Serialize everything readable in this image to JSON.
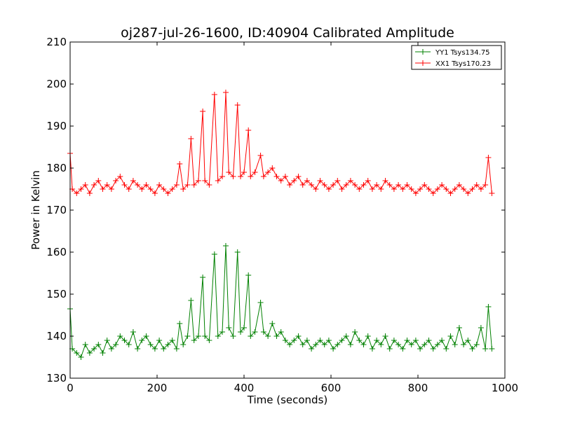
{
  "chart_data": {
    "type": "line",
    "title": "oj287-jul-26-1600, ID:40904 Calibrated Amplitude",
    "xlabel": "Time (seconds)",
    "ylabel": "Power in Kelvin",
    "xlim": [
      0,
      1000
    ],
    "ylim": [
      130,
      210
    ],
    "xticks": [
      0,
      200,
      400,
      600,
      800,
      1000
    ],
    "yticks": [
      130,
      140,
      150,
      160,
      170,
      180,
      190,
      200,
      210
    ],
    "grid": false,
    "legend_position": "top-right",
    "marker": "plus",
    "series": [
      {
        "name": "YY1 Tsys134.75",
        "color": "#008000",
        "x": [
          0,
          5,
          15,
          25,
          35,
          45,
          55,
          65,
          75,
          85,
          95,
          105,
          115,
          125,
          135,
          145,
          155,
          165,
          175,
          185,
          195,
          205,
          215,
          225,
          235,
          245,
          252,
          260,
          270,
          278,
          285,
          295,
          305,
          310,
          320,
          332,
          340,
          350,
          358,
          365,
          375,
          385,
          392,
          400,
          410,
          415,
          425,
          438,
          445,
          455,
          465,
          475,
          485,
          495,
          505,
          515,
          525,
          535,
          545,
          555,
          565,
          575,
          585,
          595,
          605,
          615,
          625,
          635,
          645,
          655,
          665,
          675,
          685,
          695,
          705,
          715,
          725,
          735,
          745,
          755,
          765,
          775,
          785,
          795,
          805,
          815,
          825,
          835,
          845,
          855,
          865,
          875,
          885,
          895,
          905,
          915,
          925,
          935,
          945,
          955,
          962,
          970
        ],
        "values": [
          146.5,
          137,
          136,
          135,
          138,
          136,
          137,
          138,
          136,
          139,
          137,
          138,
          140,
          139,
          138,
          141,
          137,
          139,
          140,
          138,
          137,
          139,
          137,
          138,
          139,
          137,
          143,
          138,
          140,
          148.5,
          139,
          140,
          154,
          140,
          139,
          159.5,
          140,
          141,
          161.5,
          142,
          140,
          160,
          141,
          142,
          154.5,
          140,
          141,
          148,
          141,
          140,
          143,
          140,
          141,
          139,
          138,
          139,
          140,
          138,
          139,
          137,
          138,
          139,
          138,
          139,
          137,
          138,
          139,
          140,
          138,
          141,
          139,
          138,
          140,
          137,
          139,
          138,
          140,
          137,
          139,
          138,
          137,
          139,
          138,
          139,
          137,
          138,
          139,
          137,
          138,
          139,
          137,
          140,
          138,
          142,
          138,
          139,
          137,
          138,
          142,
          137,
          147,
          137
        ]
      },
      {
        "name": "XX1 Tsys170.23",
        "color": "#ff0000",
        "x": [
          0,
          5,
          15,
          25,
          35,
          45,
          55,
          65,
          75,
          85,
          95,
          105,
          115,
          125,
          135,
          145,
          155,
          165,
          175,
          185,
          195,
          205,
          215,
          225,
          235,
          245,
          252,
          260,
          270,
          278,
          285,
          295,
          305,
          310,
          320,
          332,
          340,
          350,
          358,
          365,
          375,
          385,
          392,
          400,
          410,
          415,
          425,
          438,
          445,
          455,
          465,
          475,
          485,
          495,
          505,
          515,
          525,
          535,
          545,
          555,
          565,
          575,
          585,
          595,
          605,
          615,
          625,
          635,
          645,
          655,
          665,
          675,
          685,
          695,
          705,
          715,
          725,
          735,
          745,
          755,
          765,
          775,
          785,
          795,
          805,
          815,
          825,
          835,
          845,
          855,
          865,
          875,
          885,
          895,
          905,
          915,
          925,
          935,
          945,
          955,
          962,
          970
        ],
        "values": [
          183.5,
          175,
          174,
          175,
          176,
          174,
          176,
          177,
          175,
          176,
          175,
          177,
          178,
          176,
          175,
          177,
          176,
          175,
          176,
          175,
          174,
          176,
          175,
          174,
          175,
          176,
          181,
          175,
          176,
          187,
          176,
          177,
          193.5,
          177,
          176,
          197.5,
          177,
          178,
          198,
          179,
          178,
          195,
          178,
          179,
          189,
          178,
          179,
          183,
          178,
          179,
          180,
          178,
          177,
          178,
          176,
          177,
          178,
          176,
          177,
          176,
          175,
          177,
          176,
          175,
          176,
          177,
          175,
          176,
          177,
          176,
          175,
          176,
          177,
          175,
          176,
          175,
          177,
          176,
          175,
          176,
          175,
          176,
          175,
          174,
          175,
          176,
          175,
          174,
          175,
          176,
          175,
          174,
          175,
          176,
          175,
          174,
          175,
          176,
          175,
          176,
          182.5,
          174
        ]
      }
    ]
  }
}
